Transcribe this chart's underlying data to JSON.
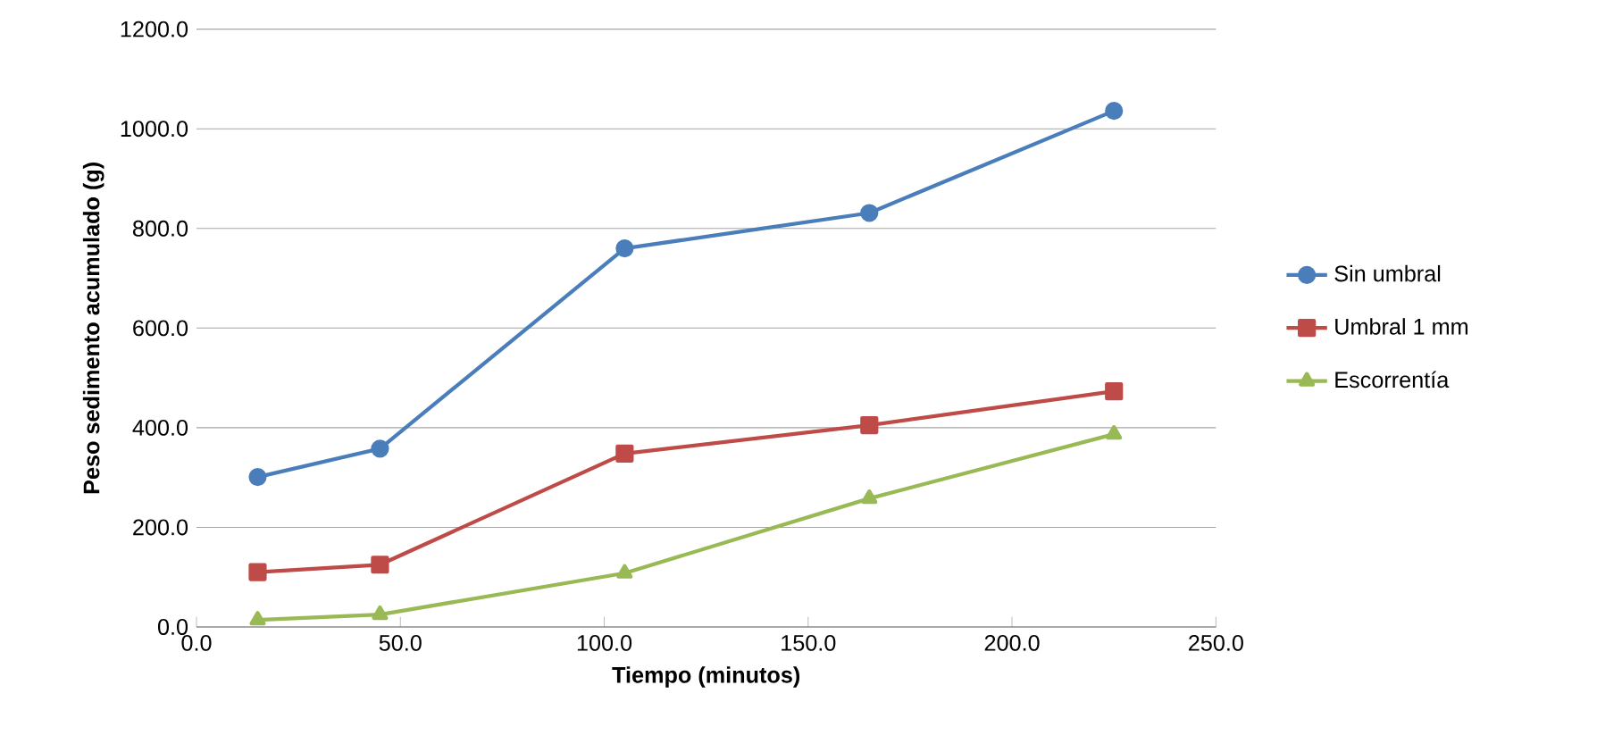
{
  "chart_data": {
    "type": "line",
    "xlabel": "Tiempo (minutos)",
    "ylabel": "Peso sedimento acumulado  (g)",
    "x": [
      15,
      45,
      105,
      165,
      225
    ],
    "series": [
      {
        "name": "Sin umbral",
        "color": "#4a7ebb",
        "marker": "circle",
        "values": [
          301,
          358,
          760,
          831,
          1036
        ]
      },
      {
        "name": "Umbral 1 mm",
        "color": "#be4b48",
        "marker": "square",
        "values": [
          110,
          125,
          348,
          405,
          473
        ]
      },
      {
        "name": "Escorrentía",
        "color": "#98b954",
        "marker": "triangle",
        "values": [
          14,
          25,
          108,
          258,
          387
        ]
      }
    ],
    "xlim": [
      0,
      250
    ],
    "ylim": [
      0,
      1200
    ],
    "xticks": [
      {
        "value": 0,
        "label": "0.0"
      },
      {
        "value": 50,
        "label": "50.0"
      },
      {
        "value": 100,
        "label": "100.0"
      },
      {
        "value": 150,
        "label": "150.0"
      },
      {
        "value": 200,
        "label": "200.0"
      },
      {
        "value": 250,
        "label": "250.0"
      }
    ],
    "yticks": [
      {
        "value": 0,
        "label": "0.0"
      },
      {
        "value": 200,
        "label": "200.0"
      },
      {
        "value": 400,
        "label": "400.0"
      },
      {
        "value": 600,
        "label": "600.0"
      },
      {
        "value": 800,
        "label": "800.0"
      },
      {
        "value": 1000,
        "label": "1000.0"
      },
      {
        "value": 1200,
        "label": "1200.0"
      }
    ],
    "grid": "y",
    "legend": "right"
  }
}
